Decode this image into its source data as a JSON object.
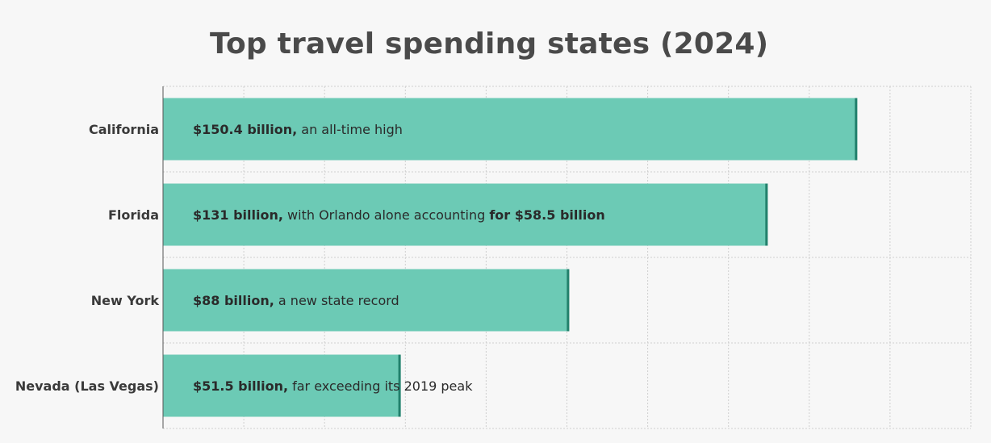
{
  "chart_data": {
    "type": "bar",
    "orientation": "horizontal",
    "title": "Top travel spending states (2024)",
    "xlabel": "",
    "ylabel": "",
    "units": "billion USD",
    "xlim": [
      0,
      175
    ],
    "grid": true,
    "categories": [
      "California",
      "Florida",
      "New York",
      "Nevada (Las Vegas)"
    ],
    "values": [
      150.4,
      131,
      88,
      51.5
    ],
    "bar_labels": [
      [
        {
          "text": "$150.4 billion,",
          "bold": true
        },
        {
          "text": " an all-time high",
          "bold": false
        }
      ],
      [
        {
          "text": "$131 billion,",
          "bold": true
        },
        {
          "text": " with Orlando alone accounting ",
          "bold": false
        },
        {
          "text": "for $58.5 billion",
          "bold": true
        }
      ],
      [
        {
          "text": "$88 billion,",
          "bold": true
        },
        {
          "text": " a new state record",
          "bold": false
        }
      ],
      [
        {
          "text": "$51.5 billion,",
          "bold": true
        },
        {
          "text": " far exceeding its 2019 peak",
          "bold": false
        }
      ]
    ],
    "colors": {
      "bar_fill": "#6ccab5",
      "bar_end": "#22806c",
      "grid": "#cfcfcf",
      "axis": "#555555",
      "background": "#f7f7f7"
    }
  }
}
